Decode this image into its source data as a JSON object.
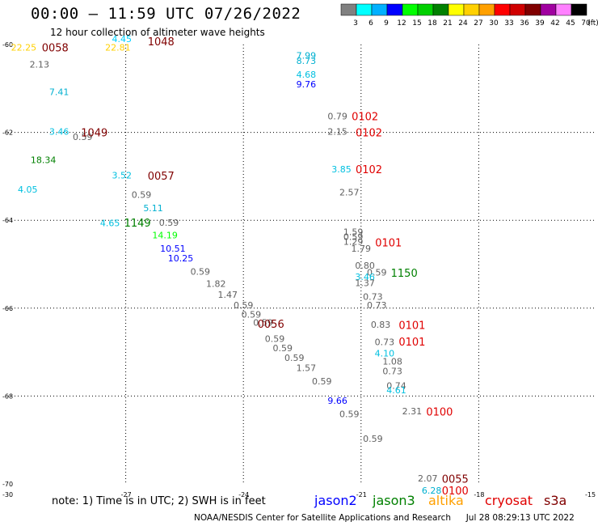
{
  "header": {
    "title": "00:00 – 11:59 UTC 07/26/2022",
    "subtitle": "12 hour collection of altimeter wave heights"
  },
  "colorbar": {
    "labels": [
      "3",
      "6",
      "9",
      "12",
      "15",
      "18",
      "21",
      "24",
      "27",
      "30",
      "33",
      "36",
      "39",
      "42",
      "45",
      "70"
    ],
    "unit": "(ft)",
    "colors": [
      "#808080",
      "#00ffff",
      "#00b0ff",
      "#0000ff",
      "#00ff00",
      "#00d000",
      "#008000",
      "#ffff00",
      "#ffd000",
      "#ffa000",
      "#ff0000",
      "#d00000",
      "#800000",
      "#a000a0",
      "#ff80ff",
      "#000000"
    ]
  },
  "map": {
    "lat_labels": [
      "-60",
      "-62",
      "-64",
      "-66",
      "-68",
      "-70"
    ],
    "lon_labels": [
      "-30",
      "-27",
      "-24",
      "-21",
      "-18",
      "-15"
    ],
    "gridlines_lat": [
      -62,
      -64,
      -66,
      -68
    ],
    "gridlines_lon": [
      -27,
      -24,
      -21,
      -18
    ],
    "swh_readings": [
      {
        "lon": -29.6,
        "lat": -60.06,
        "value": "22.25",
        "color": "#ffd000"
      },
      {
        "lon": -27.1,
        "lat": -59.87,
        "value": "4.45",
        "color": "#00d0ff"
      },
      {
        "lon": -27.2,
        "lat": -60.06,
        "value": "22.81",
        "color": "#ffd000"
      },
      {
        "lon": -29.2,
        "lat": -60.45,
        "value": "2.13",
        "color": "#606060"
      },
      {
        "lon": -28.7,
        "lat": -61.08,
        "value": "7.41",
        "color": "#00b0d0"
      },
      {
        "lon": -28.7,
        "lat": -61.98,
        "value": "3.46",
        "color": "#00c0e0"
      },
      {
        "lon": -28.1,
        "lat": -62.1,
        "value": "0.59",
        "color": "#606060"
      },
      {
        "lon": -29.1,
        "lat": -62.62,
        "value": "18.34",
        "color": "#008000"
      },
      {
        "lon": -29.5,
        "lat": -63.3,
        "value": "4.05",
        "color": "#00c0e0"
      },
      {
        "lon": -27.1,
        "lat": -62.97,
        "value": "3.52",
        "color": "#00c0e0"
      },
      {
        "lon": -26.6,
        "lat": -63.42,
        "value": "0.59",
        "color": "#606060"
      },
      {
        "lon": -26.3,
        "lat": -63.72,
        "value": "5.11",
        "color": "#00b0d0"
      },
      {
        "lon": -27.4,
        "lat": -64.06,
        "value": "4.65",
        "color": "#00c0e0"
      },
      {
        "lon": -25.9,
        "lat": -64.05,
        "value": "0.59",
        "color": "#606060"
      },
      {
        "lon": -26.0,
        "lat": -64.34,
        "value": "14.19",
        "color": "#00ff00"
      },
      {
        "lon": -25.8,
        "lat": -64.64,
        "value": "10.51",
        "color": "#0000ff"
      },
      {
        "lon": -25.6,
        "lat": -64.86,
        "value": "10.25",
        "color": "#0000ff"
      },
      {
        "lon": -25.1,
        "lat": -65.17,
        "value": "0.59",
        "color": "#606060"
      },
      {
        "lon": -24.7,
        "lat": -65.44,
        "value": "1.82",
        "color": "#606060"
      },
      {
        "lon": -24.4,
        "lat": -65.69,
        "value": "1.47",
        "color": "#606060"
      },
      {
        "lon": -24.0,
        "lat": -65.93,
        "value": "0.59",
        "color": "#606060"
      },
      {
        "lon": -23.8,
        "lat": -66.14,
        "value": "0.59",
        "color": "#606060"
      },
      {
        "lon": -23.5,
        "lat": -66.33,
        "value": "0.59",
        "color": "#606060"
      },
      {
        "lon": -23.2,
        "lat": -66.69,
        "value": "0.59",
        "color": "#606060"
      },
      {
        "lon": -23.0,
        "lat": -66.91,
        "value": "0.59",
        "color": "#606060"
      },
      {
        "lon": -22.7,
        "lat": -67.13,
        "value": "0.59",
        "color": "#606060"
      },
      {
        "lon": -22.4,
        "lat": -67.36,
        "value": "1.57",
        "color": "#606060"
      },
      {
        "lon": -22.0,
        "lat": -67.66,
        "value": "0.59",
        "color": "#606060"
      },
      {
        "lon": -21.6,
        "lat": -68.1,
        "value": "9.66",
        "color": "#0000ff"
      },
      {
        "lon": -21.3,
        "lat": -68.41,
        "value": "0.59",
        "color": "#606060"
      },
      {
        "lon": -20.7,
        "lat": -68.97,
        "value": "0.59",
        "color": "#606060"
      },
      {
        "lon": -22.4,
        "lat": -60.25,
        "value": "7.99",
        "color": "#00b0d0"
      },
      {
        "lon": -22.4,
        "lat": -60.37,
        "value": "8.73",
        "color": "#00b0d0"
      },
      {
        "lon": -22.4,
        "lat": -60.68,
        "value": "4.68",
        "color": "#00c0e0"
      },
      {
        "lon": -22.4,
        "lat": -60.9,
        "value": "9.76",
        "color": "#0000ff"
      },
      {
        "lon": -21.6,
        "lat": -61.63,
        "value": "0.79",
        "color": "#606060"
      },
      {
        "lon": -21.6,
        "lat": -61.98,
        "value": "2.15",
        "color": "#606060"
      },
      {
        "lon": -21.5,
        "lat": -62.84,
        "value": "3.85",
        "color": "#00c0e0"
      },
      {
        "lon": -21.3,
        "lat": -63.36,
        "value": "2.57",
        "color": "#606060"
      },
      {
        "lon": -21.2,
        "lat": -64.26,
        "value": "1.59",
        "color": "#606060"
      },
      {
        "lon": -21.2,
        "lat": -64.37,
        "value": "0.59",
        "color": "#606060"
      },
      {
        "lon": -21.2,
        "lat": -64.48,
        "value": "1.29",
        "color": "#606060"
      },
      {
        "lon": -21.0,
        "lat": -64.64,
        "value": "1.79",
        "color": "#606060"
      },
      {
        "lon": -20.9,
        "lat": -65.03,
        "value": "0.80",
        "color": "#606060"
      },
      {
        "lon": -20.6,
        "lat": -65.18,
        "value": "0.59",
        "color": "#606060"
      },
      {
        "lon": -20.9,
        "lat": -65.29,
        "value": "3.46",
        "color": "#00c0e0"
      },
      {
        "lon": -20.9,
        "lat": -65.42,
        "value": "1.37",
        "color": "#606060"
      },
      {
        "lon": -20.7,
        "lat": -65.74,
        "value": "0.73",
        "color": "#606060"
      },
      {
        "lon": -20.6,
        "lat": -65.93,
        "value": "0.73",
        "color": "#606060"
      },
      {
        "lon": -20.5,
        "lat": -66.37,
        "value": "0.83",
        "color": "#606060"
      },
      {
        "lon": -20.4,
        "lat": -66.77,
        "value": "0.73",
        "color": "#606060"
      },
      {
        "lon": -20.4,
        "lat": -67.03,
        "value": "4.10",
        "color": "#00c0e0"
      },
      {
        "lon": -20.2,
        "lat": -67.21,
        "value": "1.08",
        "color": "#606060"
      },
      {
        "lon": -20.2,
        "lat": -67.43,
        "value": "0.73",
        "color": "#606060"
      },
      {
        "lon": -20.1,
        "lat": -67.76,
        "value": "0.74",
        "color": "#606060"
      },
      {
        "lon": -20.1,
        "lat": -67.86,
        "value": "4.61",
        "color": "#00c0e0"
      },
      {
        "lon": -19.7,
        "lat": -68.34,
        "value": "2.31",
        "color": "#606060"
      },
      {
        "lon": -19.3,
        "lat": -69.87,
        "value": "2.07",
        "color": "#606060"
      },
      {
        "lon": -19.2,
        "lat": -70.15,
        "value": "6.28",
        "color": "#00b0d0"
      }
    ],
    "pass_times": [
      {
        "lon": -28.8,
        "lat": -60.06,
        "label": "0058",
        "color": "#800000"
      },
      {
        "lon": -26.1,
        "lat": -59.93,
        "label": "1048",
        "color": "#800000"
      },
      {
        "lon": -27.8,
        "lat": -62.0,
        "label": "1049",
        "color": "#800000"
      },
      {
        "lon": -26.1,
        "lat": -62.98,
        "label": "0057",
        "color": "#800000"
      },
      {
        "lon": -26.7,
        "lat": -64.05,
        "label": "1149",
        "color": "#008000"
      },
      {
        "lon": -23.3,
        "lat": -66.35,
        "label": "0056",
        "color": "#800000"
      },
      {
        "lon": -20.9,
        "lat": -61.63,
        "label": "0102",
        "color": "#e00000"
      },
      {
        "lon": -20.8,
        "lat": -62.0,
        "label": "0102",
        "color": "#e00000"
      },
      {
        "lon": -20.8,
        "lat": -62.84,
        "label": "0102",
        "color": "#e00000"
      },
      {
        "lon": -20.3,
        "lat": -64.5,
        "label": "0101",
        "color": "#e00000"
      },
      {
        "lon": -19.9,
        "lat": -65.19,
        "label": "1150",
        "color": "#008000"
      },
      {
        "lon": -19.7,
        "lat": -66.38,
        "label": "0101",
        "color": "#e00000"
      },
      {
        "lon": -19.7,
        "lat": -66.76,
        "label": "0101",
        "color": "#e00000"
      },
      {
        "lon": -19.0,
        "lat": -68.35,
        "label": "0100",
        "color": "#e00000"
      },
      {
        "lon": -18.6,
        "lat": -69.88,
        "label": "0055",
        "color": "#800000"
      },
      {
        "lon": -18.6,
        "lat": -70.15,
        "label": "0100",
        "color": "#e00000"
      }
    ]
  },
  "note": "note: 1) Time is in UTC; 2) SWH is in feet",
  "satellites": [
    {
      "name": "jason2",
      "color": "#0000ff"
    },
    {
      "name": "jason3",
      "color": "#008000"
    },
    {
      "name": "altika",
      "color": "#ffa000"
    },
    {
      "name": "cryosat",
      "color": "#e00000"
    },
    {
      "name": "s3a",
      "color": "#800000"
    }
  ],
  "footer": {
    "credit": "NOAA/NESDIS Center for Satellite Applications and Research",
    "timestamp": "Jul 28 08:29:13 UTC 2022"
  }
}
